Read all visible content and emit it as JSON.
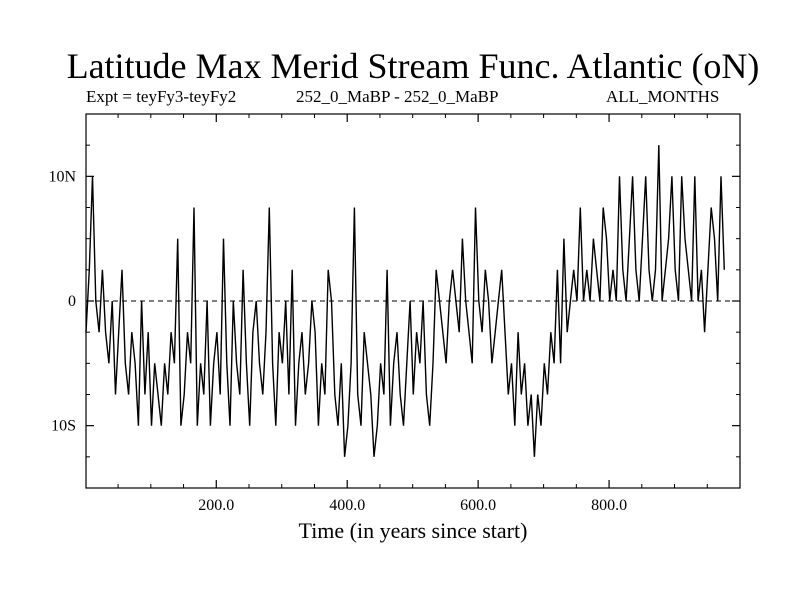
{
  "chart_data": {
    "type": "line",
    "title": "Latitude Max Merid Stream Func. Atlantic (oN)",
    "expt_label": "Expt = teyFy3-teyFy2",
    "subtitle": "252_0_MaBP - 252_0_MaBP",
    "months_label": "ALL_MONTHS",
    "xlabel": "Time (in years since start)",
    "ylabel": "",
    "xlim": [
      1,
      1000
    ],
    "ylim": [
      -15,
      15
    ],
    "x_ticks": [
      {
        "value": 200,
        "label": "200.0"
      },
      {
        "value": 400,
        "label": "400.0"
      },
      {
        "value": 600,
        "label": "600.0"
      },
      {
        "value": 800,
        "label": "800.0"
      }
    ],
    "y_ticks": [
      {
        "value": 10,
        "label": "10N"
      },
      {
        "value": 0,
        "label": "0"
      },
      {
        "value": -10,
        "label": "10S"
      }
    ],
    "zero_line": "dashed",
    "series": [
      {
        "name": "teyFy3-teyFy2",
        "x_start": 1,
        "x_step": 5,
        "values": [
          -2.5,
          2.5,
          10,
          0,
          -2.5,
          2.5,
          -2.5,
          -5,
          0,
          -7.5,
          -2.5,
          2.5,
          -5,
          -7.5,
          -2.5,
          -5,
          -10,
          0,
          -7.5,
          -2.5,
          -10,
          -5,
          -7.5,
          -10,
          -5,
          -7.5,
          -2.5,
          -5,
          5,
          -10,
          -7.5,
          -2.5,
          -5,
          7.5,
          -10,
          -5,
          -7.5,
          0,
          -10,
          -5,
          -2.5,
          -7.5,
          5,
          -5,
          -10,
          0,
          -5,
          -7.5,
          2.5,
          -5,
          -10,
          -2.5,
          0,
          -5,
          -7.5,
          -2.5,
          7.5,
          -5,
          -10,
          -2.5,
          -5,
          0,
          -7.5,
          2.5,
          -10,
          -5,
          -2.5,
          -7.5,
          -5,
          0,
          -2.5,
          -10,
          -5,
          -7.5,
          2.5,
          0,
          -7.5,
          -10,
          -5,
          -12.5,
          -10,
          -5,
          7.5,
          -7.5,
          -10,
          -2.5,
          -5,
          -7.5,
          -12.5,
          -10,
          -5,
          -7.5,
          2.5,
          -10,
          -5,
          -2.5,
          -7.5,
          -10,
          -5,
          0,
          -7.5,
          -2.5,
          -5,
          0,
          -7.5,
          -10,
          -5,
          2.5,
          0,
          -2.5,
          -5,
          0,
          2.5,
          0,
          -2.5,
          5,
          0,
          -2.5,
          -5,
          7.5,
          0,
          -2.5,
          2.5,
          0,
          -5,
          -2.5,
          0,
          2.5,
          -2.5,
          -7.5,
          -5,
          -10,
          -2.5,
          -7.5,
          -5,
          -10,
          -7.5,
          -12.5,
          -7.5,
          -10,
          -5,
          -7.5,
          -2.5,
          -5,
          2.5,
          -5,
          5,
          -2.5,
          0,
          2.5,
          0,
          7.5,
          0,
          2.5,
          0,
          5,
          2.5,
          0,
          7.5,
          5,
          0,
          2.5,
          0,
          10,
          2.5,
          0,
          5,
          10,
          2.5,
          0,
          5,
          10,
          2.5,
          0,
          2.5,
          12.5,
          0,
          2.5,
          5,
          10,
          2.5,
          0,
          10,
          5,
          2.5,
          0,
          10,
          0,
          2.5,
          -2.5,
          2.5,
          7.5,
          5,
          0,
          10,
          2.5
        ]
      }
    ]
  }
}
